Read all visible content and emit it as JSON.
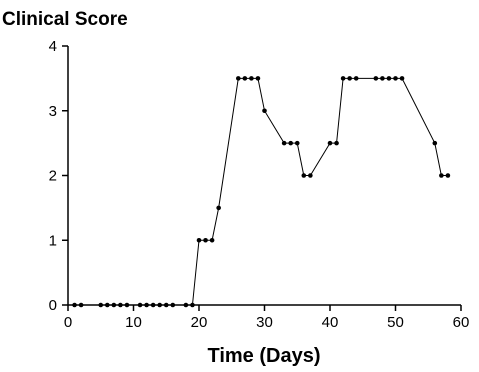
{
  "chart_data": {
    "type": "line",
    "title": "Clinical Score",
    "xlabel": "Time (Days)",
    "ylabel": "",
    "xlim": [
      0,
      60
    ],
    "ylim": [
      0,
      4
    ],
    "xticks": [
      0,
      10,
      20,
      30,
      40,
      50,
      60
    ],
    "yticks": [
      0,
      1,
      2,
      3,
      4
    ],
    "grid": false,
    "series": [
      {
        "x": [
          1,
          2,
          5,
          6,
          7,
          8,
          9,
          11,
          12,
          13,
          14,
          15,
          16,
          18,
          19,
          20,
          21,
          22,
          23,
          26,
          27,
          28,
          29,
          30,
          33,
          34,
          35,
          36,
          37,
          40,
          41,
          42,
          43,
          44,
          47,
          48,
          49,
          50,
          51,
          56,
          57,
          58
        ],
        "y": [
          0,
          0,
          0,
          0,
          0,
          0,
          0,
          0,
          0,
          0,
          0,
          0,
          0,
          0,
          0,
          1,
          1,
          1,
          1.5,
          3.5,
          3.5,
          3.5,
          3.5,
          3,
          2.5,
          2.5,
          2.5,
          2,
          2,
          2.5,
          2.5,
          3.5,
          3.5,
          3.5,
          3.5,
          3.5,
          3.5,
          3.5,
          3.5,
          2.5,
          2,
          2
        ]
      }
    ]
  }
}
